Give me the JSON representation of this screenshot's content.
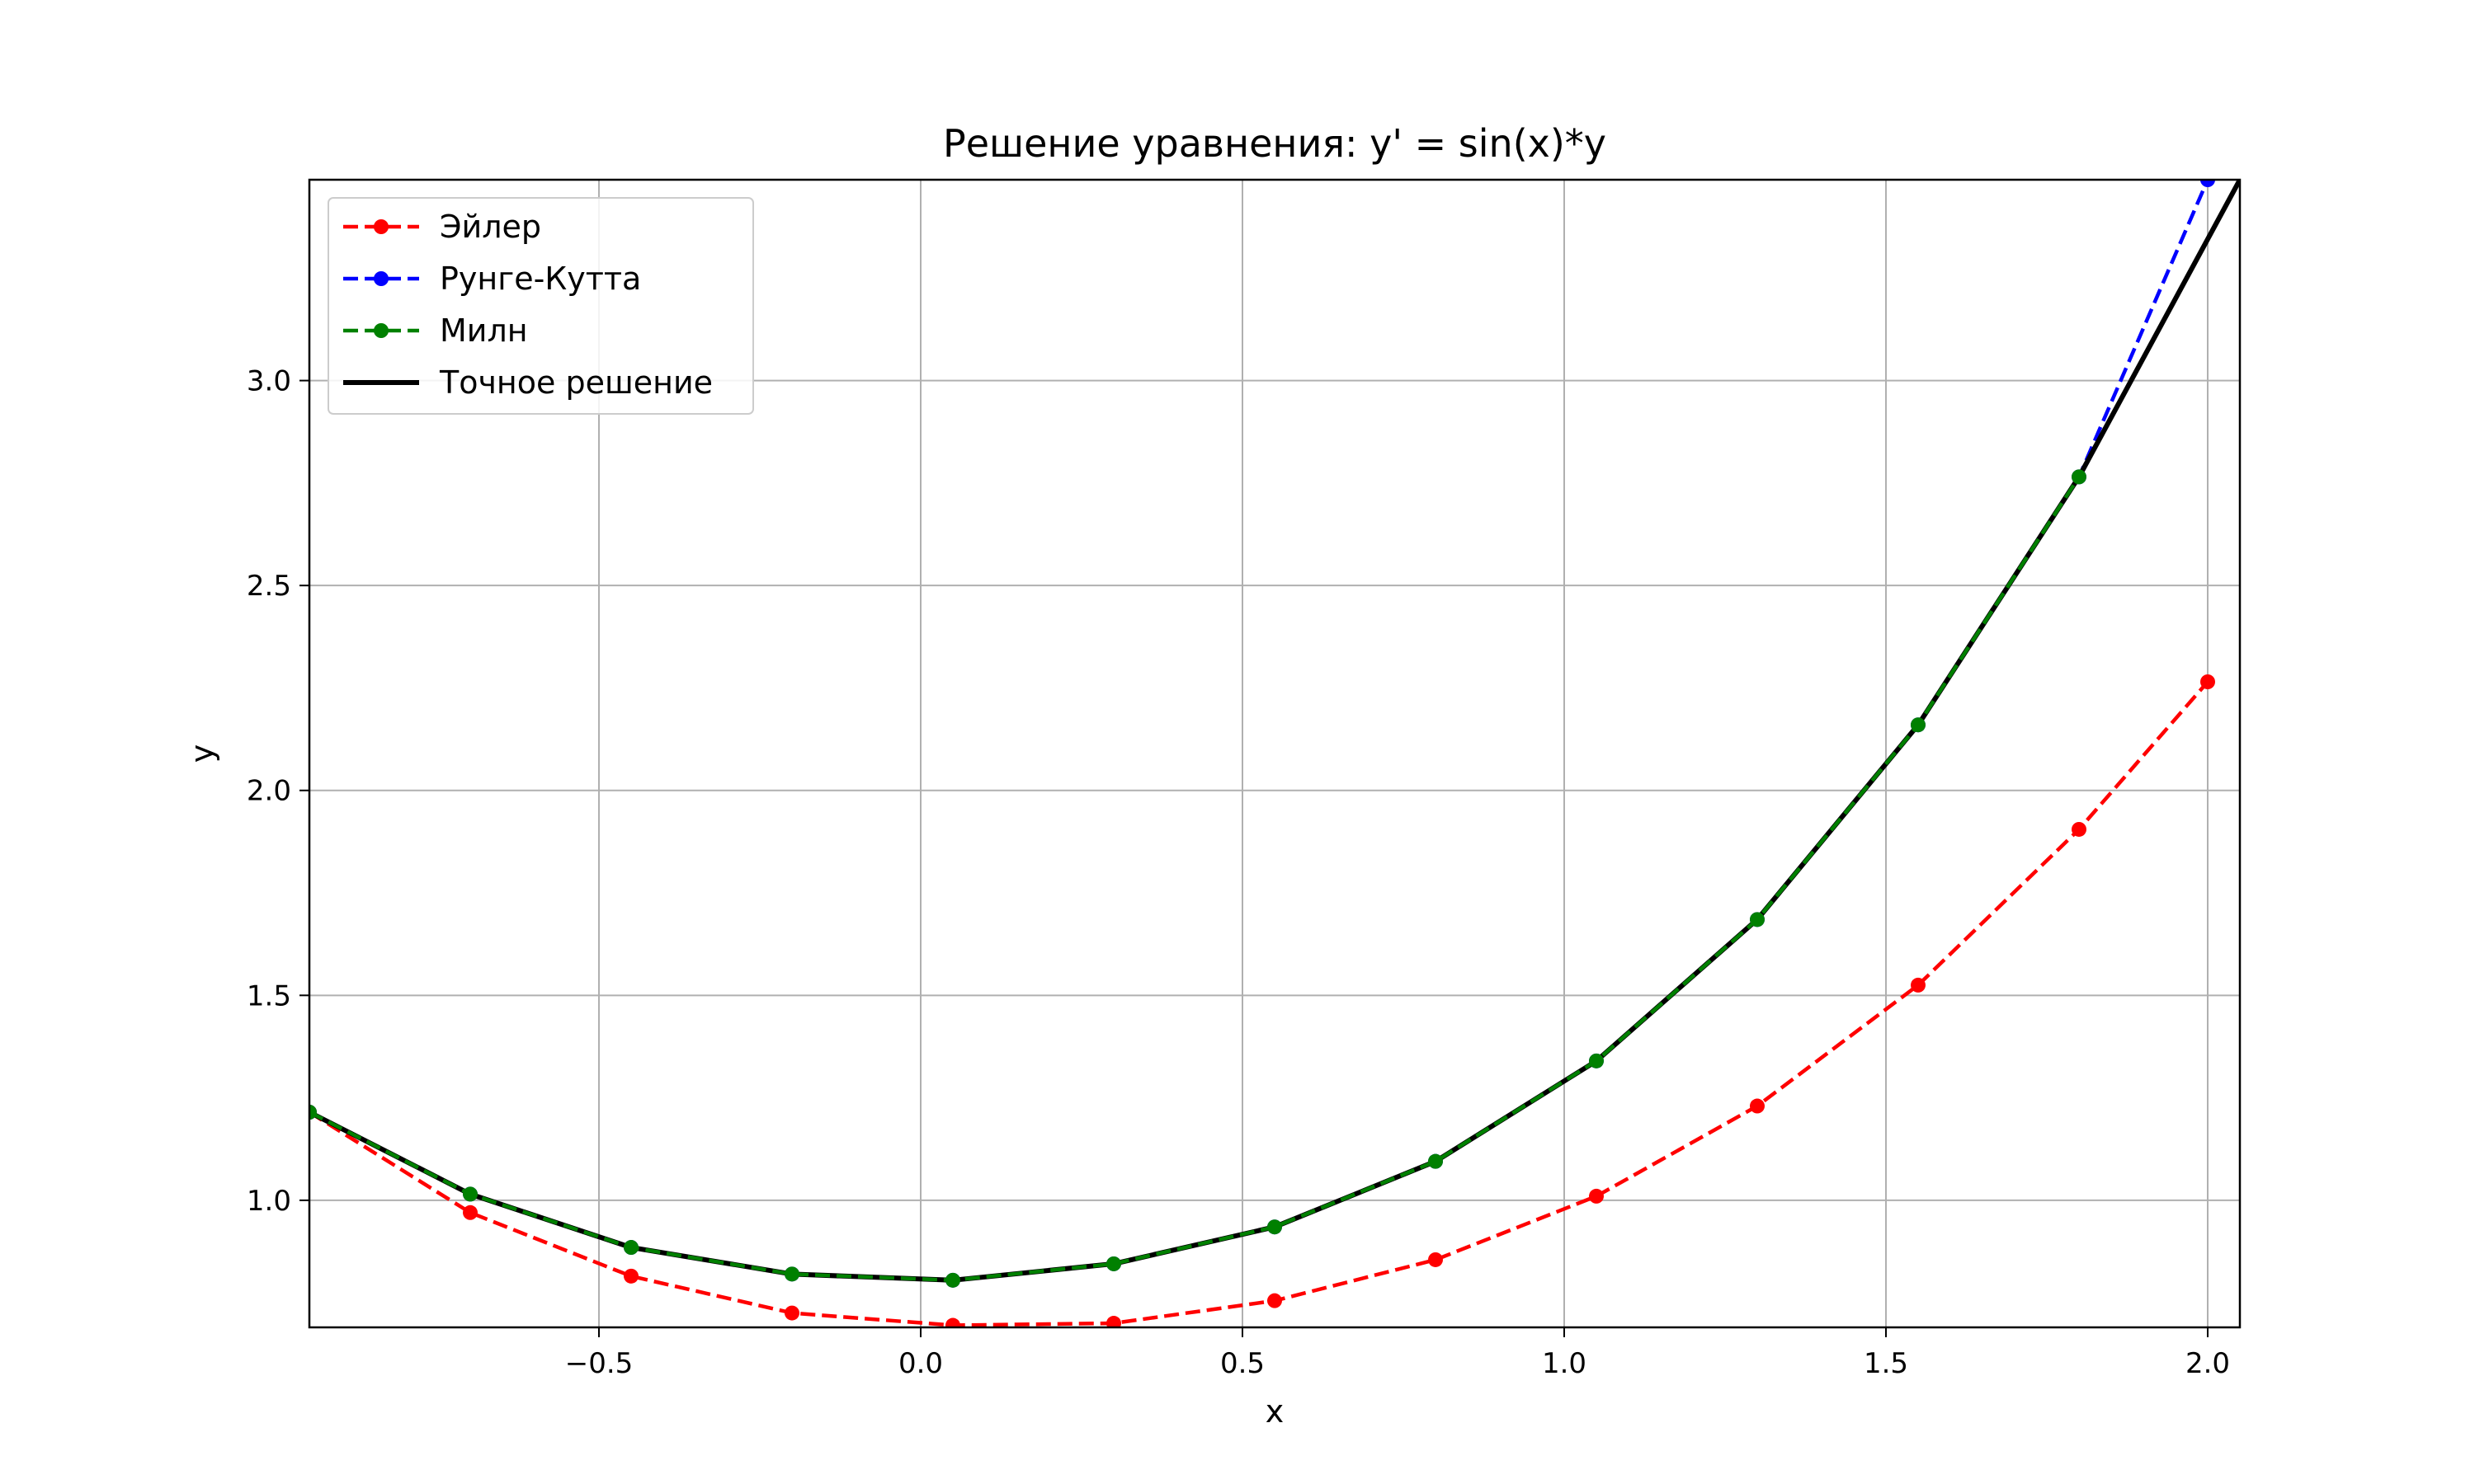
{
  "chart_data": {
    "type": "line",
    "title": "Решение уравнения: y' = sin(x)*y",
    "xlabel": "x",
    "ylabel": "y",
    "xlim": [
      -0.95,
      2.05
    ],
    "ylim": [
      0.69,
      3.49
    ],
    "xticks": [
      -0.5,
      0.0,
      0.5,
      1.0,
      1.5,
      2.0
    ],
    "xtick_labels": [
      "−0.5",
      "0.0",
      "0.5",
      "1.0",
      "1.5",
      "2.0"
    ],
    "yticks": [
      1.0,
      1.5,
      2.0,
      2.5,
      3.0
    ],
    "ytick_labels": [
      "1.0",
      "1.5",
      "2.0",
      "2.5",
      "3.0"
    ],
    "grid": true,
    "legend_position": "top-left",
    "series": [
      {
        "name": "Эйлер",
        "color": "#ff0000",
        "style": "dashed",
        "marker": "circle",
        "x": [
          -0.95,
          -0.7,
          -0.45,
          -0.2,
          0.05,
          0.3,
          0.55,
          0.8,
          1.05,
          1.3,
          1.55,
          1.8,
          2.0
        ],
        "y": [
          1.215,
          0.97,
          0.815,
          0.725,
          0.695,
          0.7,
          0.755,
          0.855,
          1.01,
          1.23,
          1.525,
          1.905,
          2.265
        ]
      },
      {
        "name": "Рунге-Кутта",
        "color": "#0000ff",
        "style": "dashed",
        "marker": "circle",
        "x": [
          -0.95,
          -0.7,
          -0.45,
          -0.2,
          0.05,
          0.3,
          0.55,
          0.8,
          1.05,
          1.3,
          1.55,
          1.8,
          2.0
        ],
        "y": [
          1.215,
          1.015,
          0.885,
          0.82,
          0.805,
          0.845,
          0.935,
          1.095,
          1.34,
          1.685,
          2.16,
          2.765,
          3.49
        ]
      },
      {
        "name": "Милн",
        "color": "#008000",
        "style": "dashed",
        "marker": "circle",
        "x": [
          -0.95,
          -0.7,
          -0.45,
          -0.2,
          0.05,
          0.3,
          0.55,
          0.8,
          1.05,
          1.3,
          1.55,
          1.8
        ],
        "y": [
          1.215,
          1.015,
          0.885,
          0.82,
          0.805,
          0.845,
          0.935,
          1.095,
          1.34,
          1.685,
          2.16,
          2.765
        ]
      },
      {
        "name": "Точное решение",
        "color": "#000000",
        "style": "solid",
        "marker": "none",
        "x": [
          -0.95,
          -0.7,
          -0.45,
          -0.2,
          0.05,
          0.3,
          0.55,
          0.8,
          1.05,
          1.3,
          1.55,
          1.8,
          2.05
        ],
        "y": [
          1.215,
          1.015,
          0.885,
          0.82,
          0.805,
          0.845,
          0.935,
          1.095,
          1.34,
          1.685,
          2.16,
          2.765,
          3.49
        ]
      }
    ]
  }
}
